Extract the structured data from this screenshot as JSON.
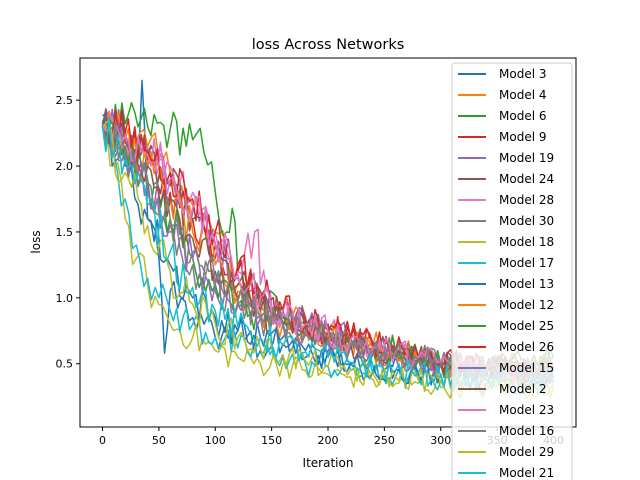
{
  "chart_data": {
    "type": "line",
    "title": "loss Across Networks",
    "xlabel": "Iteration",
    "ylabel": "loss",
    "xlim": [
      -20,
      420
    ],
    "ylim": [
      0.02,
      2.82
    ],
    "xticks": [
      0,
      50,
      100,
      150,
      200,
      250,
      300,
      350,
      400
    ],
    "xtick_labels": [
      "0",
      "50",
      "100",
      "150",
      "200",
      "250",
      "300",
      "350",
      "400"
    ],
    "yticks": [
      0.5,
      1.0,
      1.5,
      2.0,
      2.5
    ],
    "ytick_labels": [
      "0.5",
      "1.0",
      "1.5",
      "2.0",
      "2.5"
    ],
    "grid": false,
    "legend_position": "upper-right",
    "series": [
      {
        "name": "Model 3",
        "color": "#1f77b4",
        "x": [
          0,
          10,
          20,
          30,
          35,
          40,
          50,
          55,
          60,
          70,
          80,
          90,
          100,
          120,
          140,
          160,
          180,
          200,
          220,
          240,
          260,
          280,
          300,
          320,
          340,
          360,
          380,
          400
        ],
        "y": [
          2.38,
          2.3,
          2.2,
          1.9,
          2.65,
          1.6,
          1.3,
          0.58,
          1.05,
          1.0,
          0.85,
          0.8,
          0.7,
          0.75,
          0.6,
          0.7,
          0.55,
          0.6,
          0.5,
          0.45,
          0.55,
          0.42,
          0.5,
          0.45,
          0.38,
          0.5,
          0.45,
          0.55
        ]
      },
      {
        "name": "Model 4",
        "color": "#ff7f0e",
        "x": [
          0,
          10,
          20,
          30,
          40,
          50,
          60,
          70,
          80,
          90,
          100,
          110,
          120,
          140,
          160,
          180,
          200,
          220,
          240,
          260,
          280,
          300,
          320,
          340,
          360,
          380,
          400
        ],
        "y": [
          2.3,
          2.28,
          2.25,
          2.2,
          2.15,
          2.05,
          1.95,
          1.85,
          1.7,
          1.6,
          1.5,
          1.3,
          1.1,
          0.95,
          0.9,
          0.8,
          0.75,
          0.7,
          0.65,
          0.6,
          0.55,
          0.5,
          0.5,
          0.45,
          0.5,
          0.45,
          0.5
        ]
      },
      {
        "name": "Model 6",
        "color": "#2ca02c",
        "x": [
          0,
          20,
          40,
          60,
          80,
          90,
          100,
          110,
          115,
          120,
          140,
          160,
          180,
          200,
          220,
          240,
          260,
          280,
          300,
          320,
          340,
          360,
          380,
          400
        ],
        "y": [
          2.35,
          2.32,
          2.3,
          2.28,
          2.2,
          2.1,
          1.8,
          1.5,
          1.68,
          1.2,
          1.0,
          0.9,
          0.8,
          0.75,
          0.7,
          0.65,
          0.6,
          0.55,
          0.5,
          0.5,
          0.45,
          0.5,
          0.5,
          0.55
        ]
      },
      {
        "name": "Model 9",
        "color": "#d62728",
        "x": [
          0,
          20,
          40,
          60,
          80,
          100,
          120,
          140,
          160,
          180,
          200,
          220,
          240,
          260,
          280,
          300,
          320,
          340,
          360,
          380,
          400
        ],
        "y": [
          2.32,
          2.2,
          2.0,
          1.8,
          1.6,
          1.4,
          1.2,
          1.0,
          0.9,
          0.85,
          0.8,
          0.7,
          0.65,
          0.6,
          0.55,
          0.5,
          0.48,
          0.45,
          0.45,
          0.42,
          0.45
        ]
      },
      {
        "name": "Model 19",
        "color": "#9467bd",
        "x": [
          0,
          20,
          40,
          60,
          80,
          100,
          120,
          140,
          160,
          180,
          200,
          220,
          240,
          260,
          280,
          300,
          320,
          340,
          360,
          380,
          400
        ],
        "y": [
          2.33,
          2.25,
          2.1,
          1.9,
          1.65,
          1.4,
          1.15,
          1.0,
          0.9,
          0.8,
          0.75,
          0.7,
          0.65,
          0.6,
          0.55,
          0.5,
          0.5,
          0.45,
          0.45,
          0.42,
          0.45
        ]
      },
      {
        "name": "Model 24",
        "color": "#8c564b",
        "x": [
          0,
          20,
          40,
          60,
          80,
          100,
          120,
          140,
          160,
          180,
          200,
          220,
          240,
          260,
          280,
          300,
          320,
          340,
          360,
          380,
          400
        ],
        "y": [
          2.3,
          2.2,
          2.05,
          1.85,
          1.6,
          1.3,
          1.1,
          0.95,
          0.85,
          0.8,
          0.75,
          0.7,
          0.62,
          0.58,
          0.55,
          0.5,
          0.48,
          0.45,
          0.45,
          0.43,
          0.45
        ]
      },
      {
        "name": "Model 28",
        "color": "#e377c2",
        "x": [
          0,
          20,
          40,
          60,
          80,
          100,
          120,
          138,
          140,
          160,
          180,
          200,
          220,
          240,
          260,
          280,
          300,
          320,
          340,
          360,
          380,
          400
        ],
        "y": [
          2.3,
          2.25,
          2.15,
          2.0,
          1.8,
          1.5,
          1.2,
          1.52,
          1.1,
          0.9,
          0.8,
          0.75,
          0.7,
          0.62,
          0.58,
          0.55,
          0.5,
          0.48,
          0.45,
          0.45,
          0.42,
          0.45
        ]
      },
      {
        "name": "Model 30",
        "color": "#7f7f7f",
        "x": [
          0,
          20,
          40,
          60,
          80,
          100,
          120,
          140,
          160,
          180,
          200,
          220,
          240,
          260,
          280,
          300,
          320,
          340,
          360,
          380,
          400
        ],
        "y": [
          2.32,
          2.1,
          1.8,
          1.5,
          1.25,
          1.05,
          0.95,
          0.85,
          0.8,
          0.75,
          0.7,
          0.68,
          0.65,
          0.6,
          0.55,
          0.5,
          0.48,
          0.45,
          0.45,
          0.45,
          0.45
        ]
      },
      {
        "name": "Model 18",
        "color": "#bcbd22",
        "x": [
          0,
          10,
          20,
          30,
          40,
          50,
          60,
          80,
          100,
          120,
          140,
          160,
          180,
          200,
          220,
          240,
          260,
          280,
          300,
          320,
          340,
          360,
          380,
          400
        ],
        "y": [
          2.3,
          2.0,
          1.6,
          1.3,
          1.1,
          0.95,
          0.8,
          0.7,
          0.6,
          0.55,
          0.5,
          0.5,
          0.45,
          0.42,
          0.4,
          0.38,
          0.35,
          0.35,
          0.32,
          0.32,
          0.3,
          0.32,
          0.3,
          0.32
        ]
      },
      {
        "name": "Model 17",
        "color": "#17becf",
        "x": [
          0,
          10,
          20,
          30,
          40,
          50,
          60,
          80,
          100,
          120,
          140,
          160,
          180,
          200,
          220,
          240,
          260,
          280,
          300,
          320,
          340,
          360,
          380,
          400
        ],
        "y": [
          2.32,
          2.1,
          1.75,
          1.4,
          1.15,
          1.0,
          0.9,
          0.8,
          0.7,
          0.62,
          0.58,
          0.55,
          0.5,
          0.48,
          0.45,
          0.42,
          0.4,
          0.38,
          0.37,
          0.36,
          0.35,
          0.35,
          0.34,
          0.35
        ]
      },
      {
        "name": "Model 13",
        "color": "#1f77b4",
        "x": [
          0,
          20,
          40,
          60,
          80,
          100,
          120,
          140,
          160,
          180,
          200,
          220,
          240,
          260,
          280,
          300,
          320,
          340,
          360,
          380,
          400
        ],
        "y": [
          2.3,
          2.0,
          1.6,
          1.25,
          1.0,
          0.85,
          0.75,
          0.7,
          0.65,
          0.6,
          0.55,
          0.5,
          0.48,
          0.45,
          0.43,
          0.42,
          0.4,
          0.4,
          0.38,
          0.38,
          0.4
        ]
      },
      {
        "name": "Model 12",
        "color": "#ff7f0e",
        "x": [
          0,
          20,
          40,
          60,
          80,
          100,
          120,
          140,
          160,
          180,
          200,
          220,
          240,
          260,
          280,
          300,
          320,
          340,
          360,
          380,
          400
        ],
        "y": [
          2.31,
          2.2,
          2.0,
          1.75,
          1.5,
          1.25,
          1.05,
          0.9,
          0.8,
          0.75,
          0.7,
          0.65,
          0.6,
          0.55,
          0.52,
          0.5,
          0.48,
          0.46,
          0.45,
          0.44,
          0.45
        ]
      },
      {
        "name": "Model 25",
        "color": "#2ca02c",
        "x": [
          0,
          20,
          40,
          60,
          80,
          100,
          120,
          140,
          160,
          180,
          200,
          220,
          240,
          260,
          280,
          300,
          320,
          340,
          360,
          380,
          400
        ],
        "y": [
          2.3,
          2.15,
          1.9,
          1.6,
          1.3,
          1.1,
          0.95,
          0.85,
          0.78,
          0.72,
          0.68,
          0.62,
          0.58,
          0.55,
          0.52,
          0.5,
          0.48,
          0.46,
          0.45,
          0.44,
          0.45
        ]
      },
      {
        "name": "Model 26",
        "color": "#d62728",
        "x": [
          0,
          20,
          40,
          60,
          80,
          100,
          120,
          140,
          160,
          180,
          200,
          220,
          240,
          260,
          280,
          300,
          320,
          340,
          360,
          380,
          400
        ],
        "y": [
          2.33,
          2.25,
          2.12,
          1.95,
          1.75,
          1.5,
          1.25,
          1.05,
          0.92,
          0.82,
          0.75,
          0.7,
          0.65,
          0.6,
          0.56,
          0.52,
          0.5,
          0.48,
          0.46,
          0.45,
          0.46
        ]
      },
      {
        "name": "Model 15",
        "color": "#9467bd",
        "x": [
          0,
          20,
          40,
          60,
          80,
          100,
          120,
          140,
          160,
          180,
          200,
          220,
          240,
          260,
          280,
          300,
          320,
          340,
          360,
          380,
          400
        ],
        "y": [
          2.3,
          2.1,
          1.85,
          1.55,
          1.3,
          1.1,
          0.95,
          0.85,
          0.78,
          0.72,
          0.66,
          0.62,
          0.58,
          0.55,
          0.52,
          0.5,
          0.48,
          0.46,
          0.45,
          0.44,
          0.45
        ]
      },
      {
        "name": "Model 2",
        "color": "#8c564b",
        "x": [
          0,
          20,
          40,
          60,
          80,
          100,
          120,
          140,
          160,
          180,
          200,
          220,
          240,
          260,
          280,
          300,
          320,
          340,
          360,
          380,
          400
        ],
        "y": [
          2.3,
          2.18,
          2.0,
          1.75,
          1.45,
          1.2,
          1.0,
          0.9,
          0.82,
          0.76,
          0.7,
          0.65,
          0.6,
          0.56,
          0.53,
          0.5,
          0.48,
          0.47,
          0.46,
          0.45,
          0.46
        ]
      },
      {
        "name": "Model 23",
        "color": "#e377c2",
        "x": [
          0,
          20,
          40,
          60,
          80,
          100,
          120,
          140,
          160,
          180,
          200,
          220,
          240,
          260,
          280,
          300,
          320,
          340,
          360,
          380,
          400
        ],
        "y": [
          2.32,
          2.22,
          2.08,
          1.9,
          1.68,
          1.42,
          1.18,
          1.0,
          0.88,
          0.8,
          0.74,
          0.68,
          0.63,
          0.59,
          0.55,
          0.52,
          0.5,
          0.48,
          0.46,
          0.45,
          0.46
        ]
      },
      {
        "name": "Model 16",
        "color": "#7f7f7f",
        "x": [
          0,
          20,
          40,
          60,
          80,
          100,
          120,
          140,
          160,
          180,
          200,
          220,
          240,
          260,
          280,
          300,
          320,
          340,
          360,
          380,
          400
        ],
        "y": [
          2.3,
          2.12,
          1.88,
          1.6,
          1.35,
          1.12,
          0.97,
          0.87,
          0.8,
          0.74,
          0.69,
          0.64,
          0.6,
          0.56,
          0.53,
          0.5,
          0.48,
          0.47,
          0.46,
          0.45,
          0.46
        ]
      },
      {
        "name": "Model 29",
        "color": "#bcbd22",
        "x": [
          0,
          20,
          40,
          60,
          80,
          100,
          120,
          140,
          160,
          180,
          200,
          220,
          240,
          260,
          280,
          300,
          320,
          340,
          360,
          380,
          400
        ],
        "y": [
          2.28,
          1.95,
          1.55,
          1.2,
          0.95,
          0.8,
          0.7,
          0.62,
          0.57,
          0.52,
          0.48,
          0.45,
          0.42,
          0.4,
          0.38,
          0.36,
          0.35,
          0.34,
          0.34,
          0.33,
          0.34
        ]
      },
      {
        "name": "Model 21",
        "color": "#17becf",
        "x": [
          0,
          20,
          40,
          60,
          80,
          100,
          120,
          140,
          160,
          180,
          200,
          220,
          240,
          260,
          280,
          300,
          320,
          340,
          360,
          380,
          400
        ],
        "y": [
          2.3,
          2.05,
          1.7,
          1.35,
          1.08,
          0.9,
          0.78,
          0.7,
          0.64,
          0.59,
          0.55,
          0.51,
          0.48,
          0.45,
          0.43,
          0.41,
          0.4,
          0.39,
          0.38,
          0.38,
          0.39
        ]
      }
    ]
  }
}
